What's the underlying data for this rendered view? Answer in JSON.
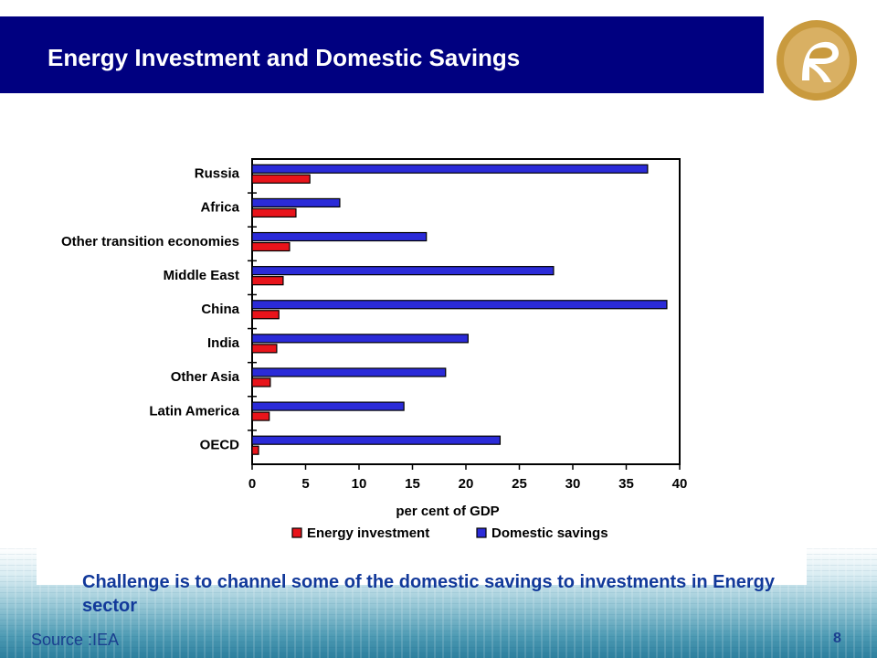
{
  "slide": {
    "title": "Energy Investment and Domestic Savings",
    "callout": "Challenge is to channel some of the domestic savings to investments in Energy sector",
    "source": "Source :IEA",
    "page_number": "8"
  },
  "colors": {
    "title_bar": "#000080",
    "energy_investment": "#e8141b",
    "domestic_savings": "#2b2bd8",
    "logo_gold": "#c99a3e"
  },
  "chart_data": {
    "type": "bar",
    "orientation": "horizontal",
    "categories": [
      "Russia",
      "Africa",
      "Other transition economies",
      "Middle East",
      "China",
      "India",
      "Other Asia",
      "Latin America",
      "OECD"
    ],
    "series": [
      {
        "name": "Domestic savings",
        "values": [
          37,
          8.2,
          16.3,
          28.2,
          38.8,
          20.2,
          18.1,
          14.2,
          23.2
        ]
      },
      {
        "name": "Energy investment",
        "values": [
          5.4,
          4.1,
          3.5,
          2.9,
          2.5,
          2.3,
          1.7,
          1.6,
          0.6
        ]
      }
    ],
    "xlabel": "per cent of GDP",
    "xlim": [
      0,
      40
    ],
    "xticks": [
      "0",
      "5",
      "10",
      "15",
      "20",
      "25",
      "30",
      "35",
      "40"
    ],
    "legend": [
      "Energy investment",
      "Domestic savings"
    ],
    "legend_position": "bottom",
    "grid": false
  }
}
